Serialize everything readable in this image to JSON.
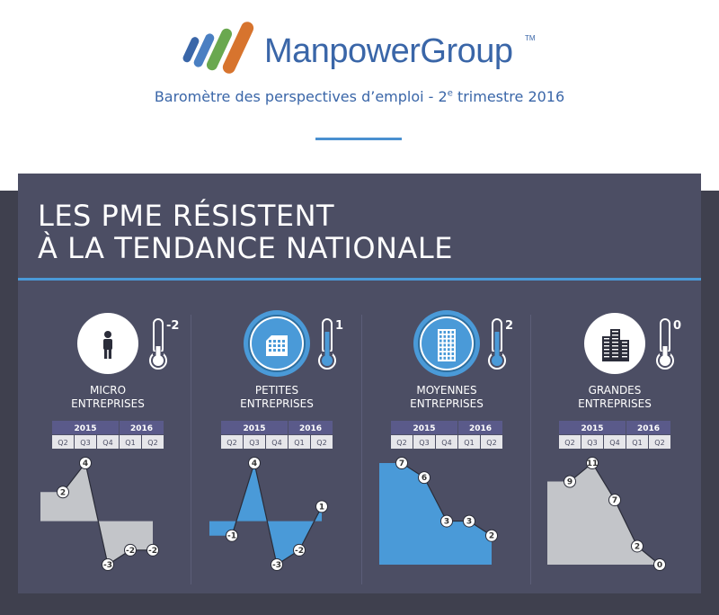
{
  "header": {
    "brand": "ManpowerGroup",
    "trademark": "TM",
    "subtitle_pre": "Baromètre des perspectives d’emploi - 2",
    "subtitle_sup": "e",
    "subtitle_post": " trimestre 2016"
  },
  "headline": {
    "line1": "LES PME RÉSISTENT",
    "line2": "À LA TENDANCE NATIONALE"
  },
  "colors": {
    "panel_bg": "#4c4e64",
    "accent_blue": "#4a9ad8",
    "grey_fill": "#c3c5c9",
    "year_header": "#5a5a8a"
  },
  "chart_data": [
    {
      "type": "area",
      "title_line1": "MICRO",
      "title_line2": "ENTREPRISES",
      "icon": "person-icon",
      "icon_style": "white",
      "thermo_value": "-2",
      "years": [
        "2015",
        "2016"
      ],
      "categories": [
        "Q2",
        "Q3",
        "Q4",
        "Q1",
        "Q2"
      ],
      "values": [
        2,
        4,
        -3,
        -2,
        -2
      ],
      "fill": "#c3c5c9"
    },
    {
      "type": "area",
      "title_line1": "PETITES",
      "title_line2": "ENTREPRISES",
      "icon": "small-building-icon",
      "icon_style": "blue",
      "thermo_value": "1",
      "years": [
        "2015",
        "2016"
      ],
      "categories": [
        "Q2",
        "Q3",
        "Q4",
        "Q1",
        "Q2"
      ],
      "values": [
        -1,
        4,
        -3,
        -2,
        1
      ],
      "fill": "#4a9ad8"
    },
    {
      "type": "area",
      "title_line1": "MOYENNES",
      "title_line2": "ENTREPRISES",
      "icon": "office-building-icon",
      "icon_style": "blue",
      "thermo_value": "2",
      "years": [
        "2015",
        "2016"
      ],
      "categories": [
        "Q2",
        "Q3",
        "Q4",
        "Q1",
        "Q2"
      ],
      "values": [
        7,
        6,
        3,
        3,
        2
      ],
      "fill": "#4a9ad8"
    },
    {
      "type": "area",
      "title_line1": "GRANDES",
      "title_line2": "ENTREPRISES",
      "icon": "skyscrapers-icon",
      "icon_style": "white",
      "thermo_value": "0",
      "years": [
        "2015",
        "2016"
      ],
      "categories": [
        "Q2",
        "Q3",
        "Q4",
        "Q1",
        "Q2"
      ],
      "values": [
        9,
        11,
        7,
        2,
        0
      ],
      "fill": "#c3c5c9"
    }
  ]
}
